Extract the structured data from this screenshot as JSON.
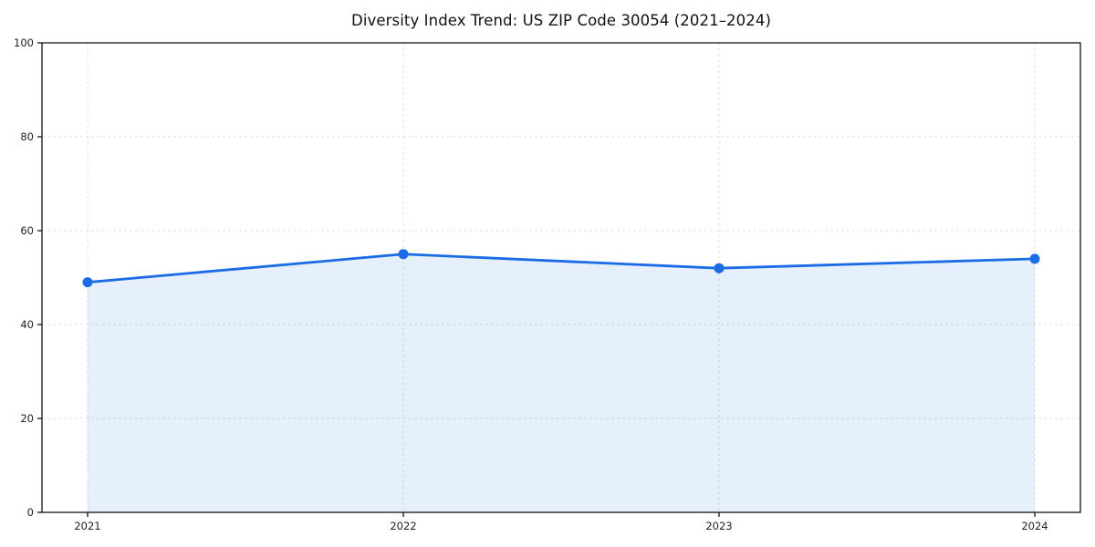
{
  "page": {
    "background_color": "#ffffff"
  },
  "chart_data": {
    "type": "area",
    "title": "Diversity Index Trend: US ZIP Code 30054 (2021–2024)",
    "categories": [
      "2021",
      "2022",
      "2023",
      "2024"
    ],
    "values": [
      49,
      55,
      52,
      54
    ],
    "series": [
      {
        "name": "Diversity Index",
        "values": [
          49,
          55,
          52,
          54
        ]
      }
    ],
    "xlabel": "",
    "ylabel": "",
    "ylim": [
      0,
      100
    ],
    "yticks": [
      0,
      20,
      40,
      60,
      80,
      100
    ],
    "grid": true,
    "grid_style": "dashed",
    "legend": "none",
    "line_color": "#1b6ce4",
    "marker_color": "#1b6ce4",
    "fill_color": "#1b6ce4",
    "fill_opacity": 0.11,
    "grid_color": "#dfdfdf",
    "spine_color": "#000000",
    "tick_label_color": "#222222",
    "title_color": "#111111"
  }
}
